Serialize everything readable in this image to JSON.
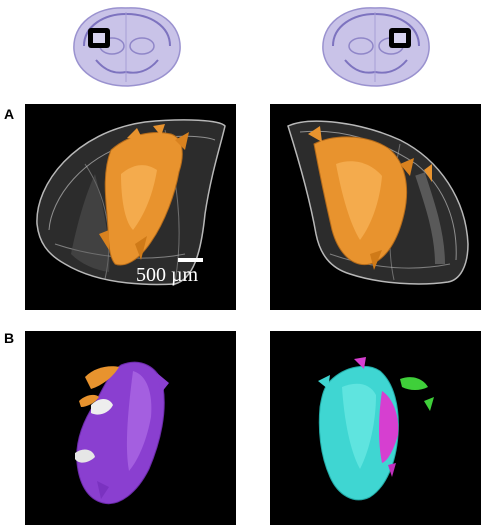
{
  "panel_labels": {
    "a": "A",
    "b": "B"
  },
  "scale_bar": {
    "text": "500 µm"
  },
  "colors": {
    "background": "#ffffff",
    "panel_background": "#000000",
    "nissl_stain": "#8f86c8",
    "structure_orange": "#e8932e",
    "outline_gray": "#b8b8b8",
    "structure_purple": "#8a3fd0",
    "structure_white": "#eeeeee",
    "structure_cyan": "#3fd6d2",
    "structure_magenta": "#d63fd0",
    "structure_green": "#3fcf3a"
  },
  "icons": [
    "brain-section-thumbnail",
    "selection-box-marker"
  ]
}
